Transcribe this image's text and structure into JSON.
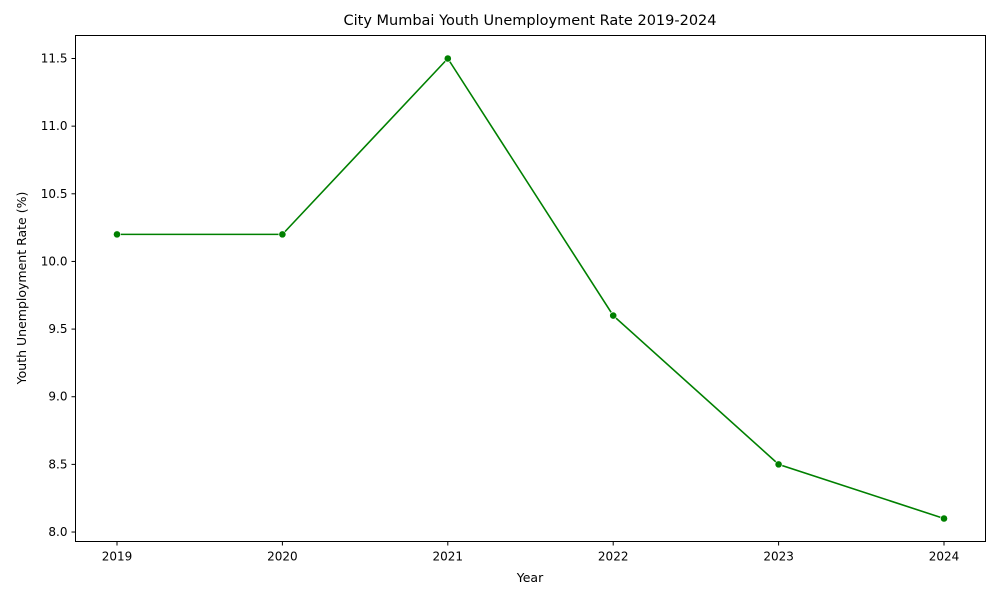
{
  "chart_data": {
    "type": "line",
    "title": "City Mumbai Youth Unemployment Rate 2019-2024",
    "xlabel": "Year",
    "ylabel": "Youth Unemployment Rate (%)",
    "x": [
      "2019",
      "2020",
      "2021",
      "2022",
      "2023",
      "2024"
    ],
    "series": [
      {
        "values": [
          10.2,
          10.2,
          11.5,
          9.6,
          8.5,
          8.1
        ],
        "color": "#008000",
        "marker": "circle"
      }
    ],
    "y_ticks": [
      "8.0",
      "8.5",
      "9.0",
      "9.5",
      "10.0",
      "10.5",
      "11.0",
      "11.5"
    ],
    "ylim": [
      7.93,
      11.67
    ],
    "grid": false,
    "legend": "none"
  }
}
